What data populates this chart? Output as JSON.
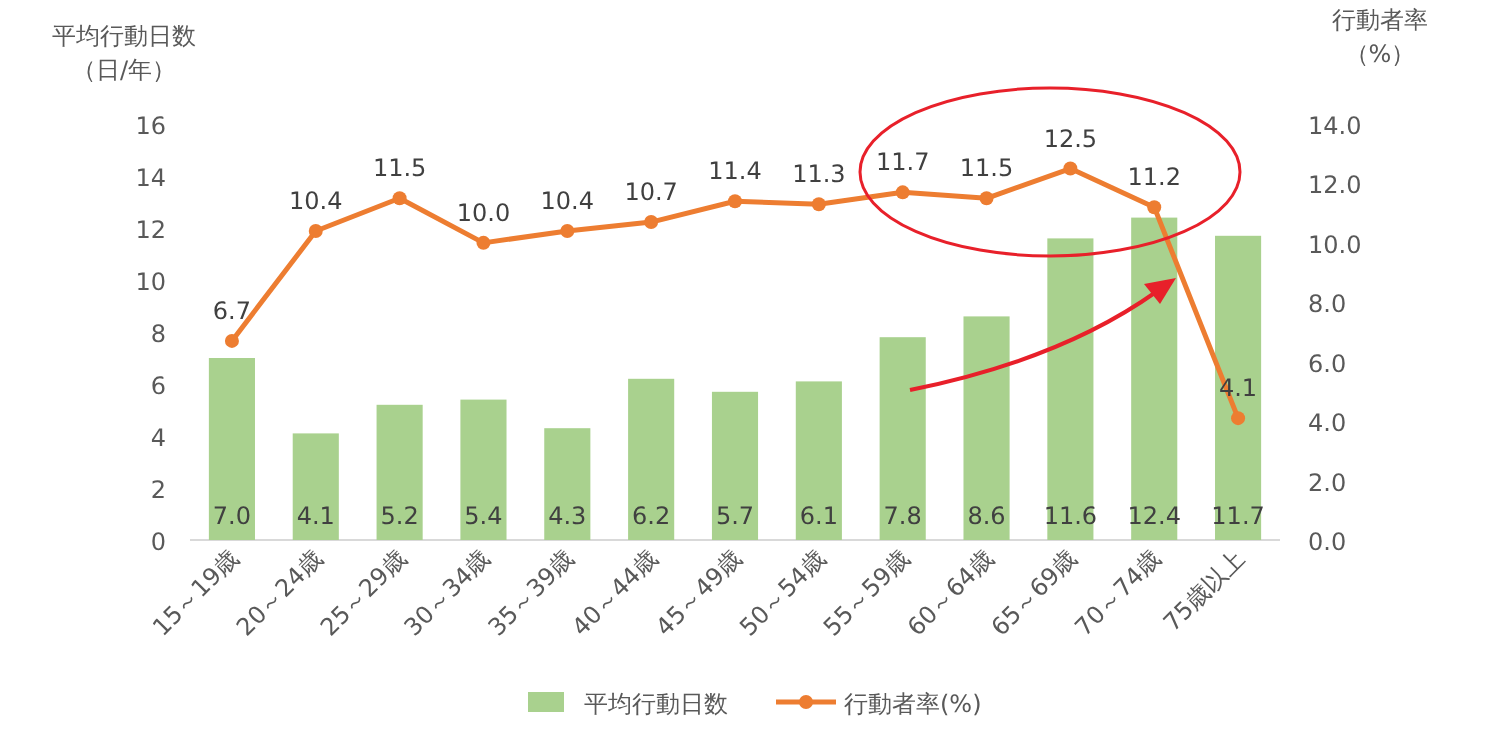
{
  "chart_data": {
    "type": "bar",
    "ylabel": "平均行動日数（日/年）",
    "y2label": "行動者率（%）",
    "categories": [
      "15～19歳",
      "20～24歳",
      "25～29歳",
      "30～34歳",
      "35～39歳",
      "40～44歳",
      "45～49歳",
      "50～54歳",
      "55～59歳",
      "60～64歳",
      "65～69歳",
      "70～74歳",
      "75歳以上"
    ],
    "series": [
      {
        "name": "平均行動日数",
        "color": "#a9d18e",
        "values": [
          7.0,
          4.1,
          5.2,
          5.4,
          4.3,
          6.2,
          5.7,
          6.1,
          7.8,
          8.6,
          11.6,
          12.4,
          11.7
        ],
        "value_labels": [
          "7.0",
          "4.1",
          "5.2",
          "5.4",
          "4.3",
          "6.2",
          "5.7",
          "6.1",
          "7.8",
          "8.6",
          "11.6",
          "12.4",
          "11.7"
        ]
      },
      {
        "name": "行動者率(%)",
        "type": "line",
        "axis": "y2",
        "color": "#ed7d31",
        "marker": "circle",
        "values": [
          6.7,
          10.4,
          11.5,
          10.0,
          10.4,
          10.7,
          11.4,
          11.3,
          11.7,
          11.5,
          12.5,
          11.2,
          4.1
        ],
        "value_labels": [
          "6.7",
          "10.4",
          "11.5",
          "10.0",
          "10.4",
          "10.7",
          "11.4",
          "11.3",
          "11.7",
          "11.5",
          "12.5",
          "11.2",
          "4.1"
        ]
      }
    ],
    "ylim": [
      0,
      16
    ],
    "yticks": [
      0,
      2,
      4,
      6,
      8,
      10,
      12,
      14,
      16
    ],
    "y2lim": [
      0,
      14
    ],
    "y2ticks": [
      {
        "value": 0,
        "label": "0.0"
      },
      {
        "value": 2,
        "label": "2.0"
      },
      {
        "value": 4,
        "label": "4.0"
      },
      {
        "value": 6,
        "label": "6.0"
      },
      {
        "value": 8,
        "label": "8.0"
      },
      {
        "value": 10,
        "label": "10.0"
      },
      {
        "value": 12,
        "label": "12.0"
      },
      {
        "value": 14,
        "label": "14.0"
      }
    ],
    "legend": "bottom"
  }
}
